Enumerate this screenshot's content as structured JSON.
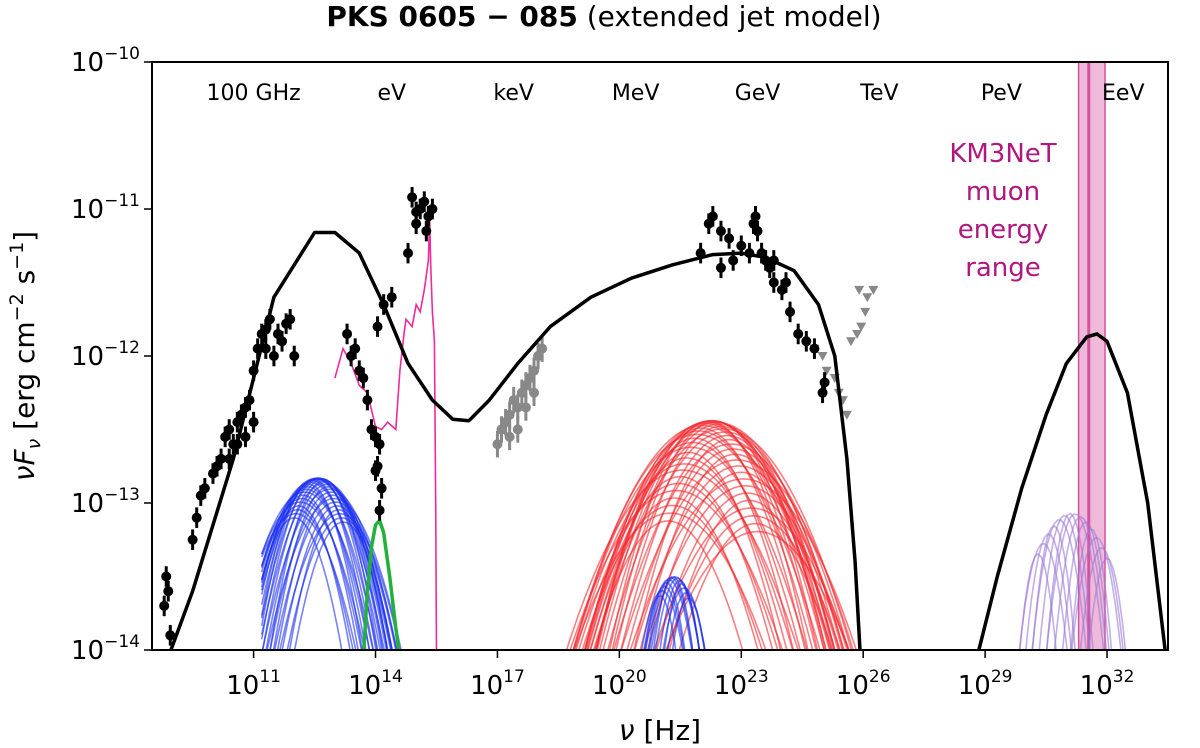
{
  "chart_data": {
    "type": "line",
    "title": {
      "bold": "PKS 0605 − 085",
      "normal": " (extended jet model)"
    },
    "xlabel": {
      "sym": "ν",
      "unit": " [Hz]"
    },
    "ylabel": {
      "sym": "νF",
      "sub": "ν",
      "unit": " [erg cm",
      "e1": "−2",
      "mid": " s",
      "e2": "−1",
      "close": "]"
    },
    "x_scale": "log",
    "y_scale": "log",
    "xlim_log10": [
      8.5,
      33.5
    ],
    "ylim_log10": [
      -14,
      -10
    ],
    "xticks": [
      {
        "base": "10",
        "exp": "11",
        "log": 11
      },
      {
        "base": "10",
        "exp": "14",
        "log": 14
      },
      {
        "base": "10",
        "exp": "17",
        "log": 17
      },
      {
        "base": "10",
        "exp": "20",
        "log": 20
      },
      {
        "base": "10",
        "exp": "23",
        "log": 23
      },
      {
        "base": "10",
        "exp": "26",
        "log": 26
      },
      {
        "base": "10",
        "exp": "29",
        "log": 29
      },
      {
        "base": "10",
        "exp": "32",
        "log": 32
      }
    ],
    "yticks": [
      {
        "base": "10",
        "exp": "−10",
        "log": -10
      },
      {
        "base": "10",
        "exp": "−11",
        "log": -11
      },
      {
        "base": "10",
        "exp": "−12",
        "log": -12
      },
      {
        "base": "10",
        "exp": "−13",
        "log": -13
      },
      {
        "base": "10",
        "exp": "−14",
        "log": -14
      }
    ],
    "energy_labels": [
      {
        "text": "100 GHz",
        "log_nu": 11.0
      },
      {
        "text": "eV",
        "log_nu": 14.4
      },
      {
        "text": "keV",
        "log_nu": 17.4
      },
      {
        "text": "MeV",
        "log_nu": 20.4
      },
      {
        "text": "GeV",
        "log_nu": 23.4
      },
      {
        "text": "TeV",
        "log_nu": 26.4
      },
      {
        "text": "PeV",
        "log_nu": 29.4
      },
      {
        "text": "EeV",
        "log_nu": 32.4
      }
    ],
    "km3net": {
      "lines": [
        "KM3NeT",
        "muon",
        "energy",
        "range"
      ],
      "band_log_nu": [
        31.3,
        31.95
      ],
      "central_log_nu": 31.55,
      "color": "#d6529f"
    },
    "model_total": {
      "name": "Total model",
      "color": "#000000",
      "points": [
        [
          8.7,
          -14.2
        ],
        [
          9.5,
          -13.6
        ],
        [
          10.5,
          -12.7
        ],
        [
          11.5,
          -11.6
        ],
        [
          12.5,
          -11.16
        ],
        [
          13.0,
          -11.16
        ],
        [
          13.6,
          -11.3
        ],
        [
          14.2,
          -11.65
        ],
        [
          14.8,
          -12.05
        ],
        [
          15.4,
          -12.3
        ],
        [
          15.9,
          -12.43
        ],
        [
          16.3,
          -12.44
        ],
        [
          16.8,
          -12.3
        ],
        [
          17.5,
          -12.05
        ],
        [
          18.3,
          -11.8
        ],
        [
          19.3,
          -11.6
        ],
        [
          20.3,
          -11.47
        ],
        [
          21.3,
          -11.38
        ],
        [
          22.3,
          -11.31
        ],
        [
          23.0,
          -11.3
        ],
        [
          23.6,
          -11.33
        ],
        [
          24.3,
          -11.42
        ],
        [
          24.9,
          -11.65
        ],
        [
          25.3,
          -12.0
        ],
        [
          25.6,
          -12.7
        ],
        [
          25.8,
          -13.4
        ],
        [
          25.93,
          -14.05
        ]
      ]
    },
    "model_neutrino": {
      "name": "Neutrino bump",
      "color": "#000000",
      "points": [
        [
          28.8,
          -14.05
        ],
        [
          29.3,
          -13.5
        ],
        [
          29.9,
          -12.9
        ],
        [
          30.5,
          -12.4
        ],
        [
          31.0,
          -12.05
        ],
        [
          31.5,
          -11.87
        ],
        [
          31.75,
          -11.85
        ],
        [
          32.0,
          -11.9
        ],
        [
          32.5,
          -12.25
        ],
        [
          33.0,
          -13.0
        ],
        [
          33.45,
          -14.05
        ]
      ]
    },
    "optical_spectrum": {
      "name": "Optical/UV spectrum",
      "color": "#ee2a9c",
      "points": [
        [
          13.0,
          -12.15
        ],
        [
          13.2,
          -11.95
        ],
        [
          13.4,
          -12.05
        ],
        [
          13.6,
          -12.2
        ],
        [
          13.8,
          -12.25
        ],
        [
          14.0,
          -12.48
        ],
        [
          14.15,
          -12.5
        ],
        [
          14.3,
          -12.45
        ],
        [
          14.5,
          -12.5
        ],
        [
          14.6,
          -12.1
        ],
        [
          14.7,
          -11.85
        ],
        [
          14.75,
          -11.75
        ],
        [
          14.9,
          -11.8
        ],
        [
          15.0,
          -11.65
        ],
        [
          15.1,
          -11.7
        ],
        [
          15.2,
          -11.55
        ],
        [
          15.3,
          -11.35
        ],
        [
          15.33,
          -11.05
        ],
        [
          15.36,
          -11.4
        ],
        [
          15.4,
          -11.7
        ],
        [
          15.45,
          -11.9
        ],
        [
          15.48,
          -13.0
        ],
        [
          15.5,
          -14.05
        ]
      ]
    },
    "components": [
      {
        "name": "Blue synchrotron family",
        "color": "#1a2ff0",
        "count": 34,
        "peak_log_nu": [
          12.0,
          13.2
        ],
        "peak_log_y": [
          -13.35,
          -12.83
        ],
        "width": 1.45,
        "xmin": 11.2,
        "xmax": 15.8
      },
      {
        "name": "Red inverse-Compton family",
        "color": "#f4292e",
        "count": 45,
        "peak_log_nu": [
          21.2,
          23.4
        ],
        "peak_log_y": [
          -13.75,
          -12.44
        ],
        "width": 2.3,
        "xmin": 14.9,
        "xmax": 26.0
      },
      {
        "name": "Blue secondary family",
        "color": "#1a2ff0",
        "count": 14,
        "peak_log_nu": [
          21.0,
          21.7
        ],
        "peak_log_y": [
          -13.75,
          -13.5
        ],
        "width": 0.75,
        "xmin": 20.0,
        "xmax": 22.8
      },
      {
        "name": "Purple neutrino family",
        "color": "#9b7ad6",
        "count": 14,
        "peak_log_nu": [
          30.3,
          32.0
        ],
        "peak_log_y": [
          -13.6,
          -13.07
        ],
        "width": 0.65,
        "xmin": 29.1,
        "xmax": 33.0
      },
      {
        "name": "Green component",
        "color": "#20b23a",
        "points": [
          [
            13.7,
            -14.05
          ],
          [
            13.8,
            -13.6
          ],
          [
            13.9,
            -13.3
          ],
          [
            14.0,
            -13.15
          ],
          [
            14.1,
            -13.12
          ],
          [
            14.2,
            -13.2
          ],
          [
            14.35,
            -13.5
          ],
          [
            14.5,
            -13.85
          ],
          [
            14.6,
            -14.05
          ]
        ]
      }
    ],
    "black_data": {
      "name": "Observations",
      "color": "#000000",
      "points": [
        [
          8.8,
          -13.7
        ],
        [
          8.85,
          -13.5
        ],
        [
          8.9,
          -13.6
        ],
        [
          8.95,
          -13.9
        ],
        [
          9.5,
          -13.25
        ],
        [
          9.6,
          -13.1
        ],
        [
          9.7,
          -12.95
        ],
        [
          9.8,
          -12.9
        ],
        [
          10.0,
          -12.8
        ],
        [
          10.1,
          -12.75
        ],
        [
          10.2,
          -12.7
        ],
        [
          10.3,
          -12.55
        ],
        [
          10.4,
          -12.5
        ],
        [
          10.5,
          -12.6
        ],
        [
          10.6,
          -12.45
        ],
        [
          10.7,
          -12.4
        ],
        [
          10.8,
          -12.35
        ],
        [
          10.9,
          -12.3
        ],
        [
          11.0,
          -12.1
        ],
        [
          11.1,
          -11.95
        ],
        [
          11.2,
          -11.85
        ],
        [
          11.3,
          -11.82
        ],
        [
          11.4,
          -11.75
        ],
        [
          11.5,
          -12.0
        ],
        [
          11.6,
          -11.85
        ],
        [
          11.7,
          -11.9
        ],
        [
          11.8,
          -11.78
        ],
        [
          11.9,
          -11.75
        ],
        [
          10.4,
          -12.7
        ],
        [
          10.6,
          -12.6
        ],
        [
          10.8,
          -12.55
        ],
        [
          11.0,
          -12.45
        ],
        [
          11.3,
          -11.95
        ],
        [
          12.0,
          -12.0
        ],
        [
          13.3,
          -11.85
        ],
        [
          13.4,
          -12.0
        ],
        [
          13.5,
          -11.95
        ],
        [
          13.6,
          -12.1
        ],
        [
          13.7,
          -12.15
        ],
        [
          13.8,
          -12.3
        ],
        [
          13.9,
          -12.5
        ],
        [
          14.0,
          -12.55
        ],
        [
          14.1,
          -12.6
        ],
        [
          14.0,
          -12.78
        ],
        [
          14.05,
          -12.75
        ],
        [
          14.1,
          -13.05
        ],
        [
          14.15,
          -12.9
        ],
        [
          14.05,
          -11.8
        ],
        [
          14.2,
          -11.65
        ],
        [
          14.4,
          -11.6
        ],
        [
          14.8,
          -11.3
        ],
        [
          15.0,
          -11.1
        ],
        [
          15.1,
          -11.0
        ],
        [
          15.2,
          -10.95
        ],
        [
          15.25,
          -11.15
        ],
        [
          15.3,
          -11.05
        ],
        [
          15.4,
          -11.0
        ],
        [
          14.9,
          -10.92
        ],
        [
          15.0,
          -11.02
        ],
        [
          22.0,
          -11.3
        ],
        [
          22.2,
          -11.1
        ],
        [
          22.3,
          -11.05
        ],
        [
          22.5,
          -11.15
        ],
        [
          22.7,
          -11.2
        ],
        [
          22.8,
          -11.35
        ],
        [
          23.0,
          -11.25
        ],
        [
          23.2,
          -11.3
        ],
        [
          23.3,
          -11.1
        ],
        [
          23.4,
          -11.15
        ],
        [
          23.5,
          -11.3
        ],
        [
          23.6,
          -11.35
        ],
        [
          23.7,
          -11.4
        ],
        [
          23.8,
          -11.5
        ],
        [
          24.0,
          -11.55
        ],
        [
          24.2,
          -11.7
        ],
        [
          24.4,
          -11.85
        ],
        [
          24.6,
          -11.9
        ],
        [
          24.8,
          -11.95
        ],
        [
          25.0,
          -12.25
        ],
        [
          25.05,
          -12.18
        ],
        [
          23.35,
          -11.05
        ],
        [
          22.5,
          -11.4
        ],
        [
          23.8,
          -11.35
        ],
        [
          24.1,
          -11.5
        ]
      ]
    },
    "gray_data": {
      "name": "X-ray data",
      "color": "#888888",
      "points": [
        [
          17.0,
          -12.6
        ],
        [
          17.1,
          -12.5
        ],
        [
          17.2,
          -12.45
        ],
        [
          17.3,
          -12.55
        ],
        [
          17.4,
          -12.3
        ],
        [
          17.5,
          -12.35
        ],
        [
          17.6,
          -12.25
        ],
        [
          17.7,
          -12.2
        ],
        [
          17.8,
          -12.15
        ],
        [
          17.9,
          -12.1
        ],
        [
          18.0,
          -12.0
        ],
        [
          18.1,
          -11.95
        ],
        [
          17.3,
          -12.4
        ],
        [
          17.5,
          -12.5
        ],
        [
          17.7,
          -12.35
        ],
        [
          17.9,
          -12.25
        ]
      ]
    },
    "upper_limits": {
      "name": "Upper limits",
      "color": "#888888",
      "points": [
        [
          24.8,
          -11.95
        ],
        [
          25.0,
          -12.0
        ],
        [
          25.1,
          -12.1
        ],
        [
          25.3,
          -12.15
        ],
        [
          25.4,
          -12.25
        ],
        [
          25.5,
          -12.3
        ],
        [
          25.6,
          -12.4
        ],
        [
          25.7,
          -11.9
        ],
        [
          25.85,
          -11.85
        ],
        [
          25.95,
          -11.8
        ],
        [
          26.1,
          -11.6
        ],
        [
          26.25,
          -11.55
        ],
        [
          25.9,
          -11.55
        ],
        [
          26.05,
          -11.7
        ]
      ]
    }
  }
}
